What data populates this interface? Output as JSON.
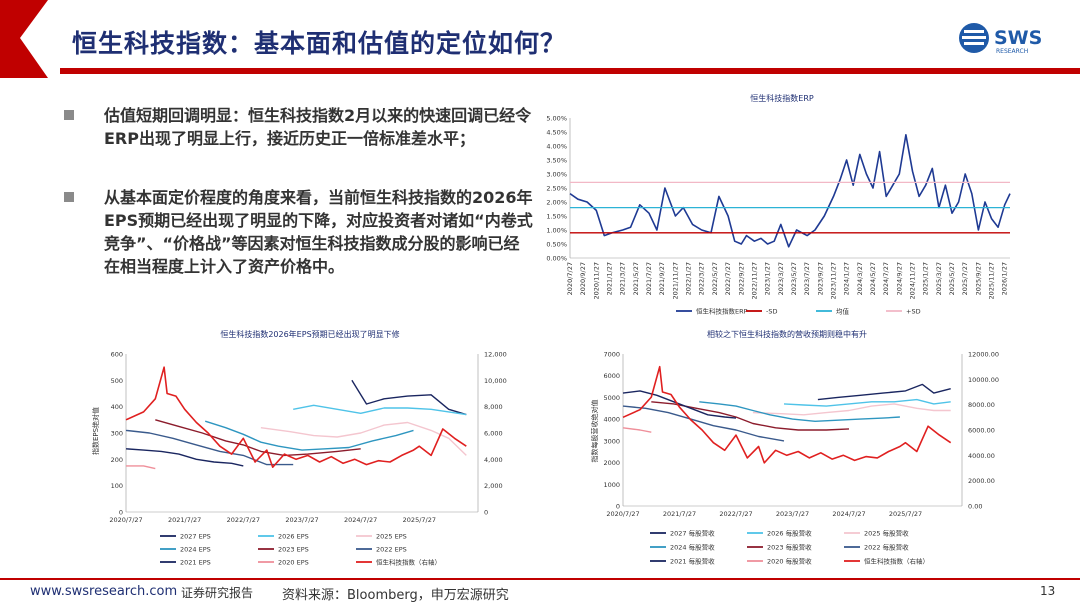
{
  "header": {
    "title": "恒生科技指数：基本面和估值的定位如何？"
  },
  "logo": {
    "text": "SWS",
    "subtext": "RESEARCH"
  },
  "bullets": [
    {
      "text": "估值短期回调明显：恒生科技指数2月以来的快速回调已经令ERP出现了明显上行，接近历史正一倍标准差水平；"
    },
    {
      "text": "从基本面定价程度的角度来看，当前恒生科技指数的2026年EPS预期已经出现了明显的下降，对应投资者对诸如“内卷式竞争”、“价格战”等因素对恒生科技指数成分股的影响已经在相当程度上计入了资产价格中。"
    }
  ],
  "footer": {
    "website": "www.swsresearch.com",
    "label": "证券研究报告",
    "source": "资料来源：Bloomberg，申万宏源研究",
    "page": "13"
  },
  "colors": {
    "navy": "#1f2f73",
    "red": "#c00000"
  },
  "chart_data": [
    {
      "type": "line",
      "title": "恒生科技指数ERP",
      "y_ticks": [
        "5.00%",
        "4.50%",
        "4.00%",
        "3.50%",
        "3.00%",
        "2.50%",
        "2.00%",
        "1.50%",
        "1.00%",
        "0.50%",
        "0.00%"
      ],
      "ylim": [
        0,
        5
      ],
      "x_ticks": [
        "2020/7/27",
        "2020/9/27",
        "2020/11/27",
        "2021/1/27",
        "2021/3/27",
        "2021/5/27",
        "2021/7/27",
        "2021/9/27",
        "2021/11/27",
        "2022/1/27",
        "2022/3/27",
        "2022/5/27",
        "2022/7/27",
        "2022/9/27",
        "2022/11/27",
        "2023/1/27",
        "2023/3/27",
        "2023/5/27",
        "2023/7/27",
        "2023/9/27",
        "2023/11/27",
        "2024/1/27",
        "2024/3/27",
        "2024/5/27",
        "2024/7/27",
        "2024/9/27",
        "2024/11/27",
        "2025/1/27",
        "2025/3/27",
        "2025/5/27",
        "2025/7/27",
        "2025/9/27",
        "2025/11/27",
        "2026/1/27"
      ],
      "legend": [
        "恒生科技指数ERP",
        "-SD",
        "均值",
        "+SD"
      ],
      "series": [
        {
          "name": "恒生科技指数ERP",
          "color": "#1f3a93",
          "x": [
            0,
            0.6,
            1.3,
            2,
            2.6,
            3.2,
            4,
            4.6,
            5.3,
            6,
            6.6,
            7.2,
            8,
            8.6,
            9.3,
            10,
            10.7,
            11.3,
            12,
            12.5,
            13,
            13.4,
            14,
            14.5,
            15,
            15.5,
            16,
            16.6,
            17.2,
            18,
            18.6,
            19.3,
            20,
            20.5,
            21,
            21.5,
            22,
            22.5,
            23,
            23.5,
            24,
            24.5,
            25,
            25.5,
            26,
            26.5,
            27,
            27.5,
            28,
            28.5,
            29,
            29.5,
            30,
            30.5,
            31,
            31.5,
            32,
            32.5,
            33,
            33.4
          ],
          "values": [
            2.3,
            2.1,
            2.0,
            1.7,
            0.8,
            0.9,
            1.0,
            1.1,
            1.9,
            1.6,
            1.0,
            2.5,
            1.5,
            1.8,
            1.2,
            1.0,
            0.9,
            2.2,
            1.5,
            0.6,
            0.5,
            0.8,
            0.6,
            0.7,
            0.5,
            0.6,
            1.2,
            0.4,
            1.0,
            0.8,
            1.0,
            1.5,
            2.2,
            2.8,
            3.5,
            2.6,
            3.7,
            3.0,
            2.5,
            3.8,
            2.2,
            2.6,
            3.0,
            4.4,
            3.1,
            2.2,
            2.6,
            3.2,
            1.8,
            2.6,
            1.6,
            2.0,
            3.0,
            2.3,
            1.0,
            2.0,
            1.4,
            1.1,
            1.9,
            2.3
          ]
        },
        {
          "name": "-SD",
          "color": "#c00000",
          "x": [
            0,
            33.4
          ],
          "values": [
            0.9,
            0.9
          ]
        },
        {
          "name": "均值",
          "color": "#2cb3d6",
          "x": [
            0,
            33.4
          ],
          "values": [
            1.8,
            1.8
          ]
        },
        {
          "name": "+SD",
          "color": "#f2b8c6",
          "x": [
            0,
            33.4
          ],
          "values": [
            2.7,
            2.7
          ]
        }
      ]
    },
    {
      "type": "line",
      "title": "恒生科技指数2026年EPS预期已经出现了明显下修",
      "ylabel": "指数EPS绝对值",
      "y_ticks": [
        "600",
        "500",
        "400",
        "300",
        "200",
        "100",
        "0"
      ],
      "y2_ticks": [
        "12,000",
        "10,000",
        "8,000",
        "6,000",
        "4,000",
        "2,000",
        "0"
      ],
      "ylim": [
        0,
        600
      ],
      "y2lim": [
        0,
        12000
      ],
      "x_ticks": [
        "2020/7/27",
        "2021/7/27",
        "2022/7/27",
        "2023/7/27",
        "2024/7/27",
        "2025/7/27"
      ],
      "legend": [
        "2027 EPS",
        "2026 EPS",
        "2025 EPS",
        "2024 EPS",
        "2023 EPS",
        "2022 EPS",
        "2021 EPS",
        "2020 EPS",
        "恒生科技指数（右轴）"
      ],
      "series": [
        {
          "name": "2027 EPS",
          "color": "#1a2660",
          "x": [
            3.85,
            4.1,
            4.4,
            4.8,
            5.2,
            5.5,
            5.8
          ],
          "values": [
            500,
            410,
            430,
            440,
            445,
            390,
            370
          ]
        },
        {
          "name": "2026 EPS",
          "color": "#4fc3e8",
          "x": [
            2.85,
            3.2,
            3.6,
            4.0,
            4.4,
            4.8,
            5.2,
            5.5,
            5.8
          ],
          "values": [
            390,
            405,
            390,
            375,
            395,
            395,
            390,
            380,
            370
          ]
        },
        {
          "name": "2025 EPS",
          "color": "#f4c6cf",
          "x": [
            2.3,
            2.8,
            3.2,
            3.6,
            4.0,
            4.4,
            4.8,
            5.2,
            5.5,
            5.8
          ],
          "values": [
            320,
            305,
            290,
            285,
            300,
            330,
            340,
            310,
            280,
            215
          ]
        },
        {
          "name": "2024 EPS",
          "color": "#2e96c0",
          "x": [
            1.35,
            1.7,
            2.0,
            2.3,
            2.6,
            3.0,
            3.4,
            3.8,
            4.2,
            4.6,
            4.9
          ],
          "values": [
            345,
            320,
            295,
            265,
            250,
            235,
            240,
            245,
            270,
            290,
            310
          ]
        },
        {
          "name": "2023 EPS",
          "color": "#8c1c2c",
          "x": [
            0.5,
            0.9,
            1.3,
            1.7,
            2.0,
            2.3,
            2.7,
            3.1,
            3.6,
            4.0
          ],
          "values": [
            350,
            325,
            300,
            270,
            255,
            230,
            215,
            220,
            230,
            240
          ]
        },
        {
          "name": "2022 EPS",
          "color": "#3a5a8c",
          "x": [
            0,
            0.4,
            0.8,
            1.2,
            1.6,
            2.0,
            2.4,
            2.85
          ],
          "values": [
            310,
            300,
            280,
            255,
            230,
            215,
            180,
            180
          ]
        },
        {
          "name": "2021 EPS",
          "color": "#1a2660",
          "x": [
            0,
            0.3,
            0.6,
            0.9,
            1.2,
            1.5,
            1.8,
            2.0
          ],
          "values": [
            240,
            235,
            230,
            220,
            200,
            190,
            185,
            175
          ]
        },
        {
          "name": "2020 EPS",
          "color": "#ef8f9a",
          "x": [
            0,
            0.3,
            0.5
          ],
          "values": [
            175,
            175,
            165
          ]
        },
        {
          "name": "恒生科技指数（右轴）",
          "color": "#e02020",
          "axis": "right",
          "x": [
            0,
            0.3,
            0.5,
            0.65,
            0.7,
            0.85,
            1.0,
            1.2,
            1.4,
            1.6,
            1.8,
            2.0,
            2.2,
            2.4,
            2.5,
            2.7,
            2.9,
            3.1,
            3.3,
            3.5,
            3.7,
            3.9,
            4.1,
            4.3,
            4.5,
            4.7,
            4.9,
            5.0,
            5.2,
            5.4,
            5.6,
            5.8
          ],
          "values": [
            7000,
            7600,
            8600,
            11000,
            9000,
            8800,
            7800,
            6800,
            6000,
            5000,
            4400,
            5600,
            3800,
            4700,
            3400,
            4400,
            4000,
            4300,
            3800,
            4200,
            3700,
            4000,
            3600,
            3900,
            3800,
            4300,
            4700,
            5000,
            4300,
            6300,
            5600,
            5000
          ]
        }
      ]
    },
    {
      "type": "line",
      "title": "相较之下恒生科技指数的营收预期则稳中有升",
      "ylabel": "指数每股营收绝对值",
      "y_ticks": [
        "7000",
        "6000",
        "5000",
        "4000",
        "3000",
        "2000",
        "1000",
        "0"
      ],
      "y2_ticks": [
        "12000.00",
        "10000.00",
        "8000.00",
        "6000.00",
        "4000.00",
        "2000.00",
        "0.00"
      ],
      "ylim": [
        0,
        7000
      ],
      "y2lim": [
        0,
        12000
      ],
      "x_ticks": [
        "2020/7/27",
        "2021/7/27",
        "2022/7/27",
        "2023/7/27",
        "2024/7/27",
        "2025/7/27"
      ],
      "legend": [
        "2027 每股营收",
        "2026 每股营收",
        "2025 每股营收",
        "2024 每股营收",
        "2023 每股营收",
        "2022 每股营收",
        "2021 每股营收",
        "2020 每股营收",
        "恒生科技指数（右轴）"
      ],
      "series": [
        {
          "name": "2027 每股营收",
          "color": "#1a2660",
          "x": [
            3.45,
            3.8,
            4.2,
            4.6,
            5.0,
            5.3,
            5.5,
            5.8
          ],
          "values": [
            4900,
            5000,
            5100,
            5200,
            5300,
            5600,
            5200,
            5400
          ]
        },
        {
          "name": "2026 每股营收",
          "color": "#4fc3e8",
          "x": [
            2.85,
            3.2,
            3.6,
            4.0,
            4.4,
            4.8,
            5.2,
            5.5,
            5.8
          ],
          "values": [
            4700,
            4650,
            4600,
            4700,
            4800,
            4800,
            4900,
            4700,
            4800
          ]
        },
        {
          "name": "2025 每股营收",
          "color": "#f4c6cf",
          "x": [
            2.3,
            2.8,
            3.2,
            3.6,
            4.0,
            4.4,
            4.8,
            5.2,
            5.5,
            5.8
          ],
          "values": [
            4300,
            4250,
            4200,
            4300,
            4400,
            4600,
            4700,
            4500,
            4400,
            4400
          ]
        },
        {
          "name": "2024 每股营收",
          "color": "#2e96c0",
          "x": [
            1.35,
            1.7,
            2.0,
            2.3,
            2.6,
            3.0,
            3.4,
            3.8,
            4.2,
            4.6,
            4.9
          ],
          "values": [
            4800,
            4700,
            4600,
            4400,
            4200,
            4000,
            3900,
            3950,
            4000,
            4050,
            4100
          ]
        },
        {
          "name": "2023 每股营收",
          "color": "#8c1c2c",
          "x": [
            0.5,
            0.9,
            1.3,
            1.7,
            2.0,
            2.3,
            2.7,
            3.1,
            3.6,
            4.0
          ],
          "values": [
            4800,
            4700,
            4500,
            4300,
            4100,
            3800,
            3600,
            3500,
            3500,
            3550
          ]
        },
        {
          "name": "2022 每股营收",
          "color": "#3a5a8c",
          "x": [
            0,
            0.4,
            0.8,
            1.2,
            1.6,
            2.0,
            2.4,
            2.85
          ],
          "values": [
            4600,
            4500,
            4300,
            4000,
            3700,
            3500,
            3200,
            3000
          ]
        },
        {
          "name": "2021 每股营收",
          "color": "#1a2660",
          "x": [
            0,
            0.3,
            0.6,
            0.9,
            1.2,
            1.5,
            1.8,
            2.0
          ],
          "values": [
            5200,
            5300,
            5100,
            4800,
            4500,
            4200,
            4100,
            4050
          ]
        },
        {
          "name": "2020 每股营收",
          "color": "#ef8f9a",
          "x": [
            0,
            0.3,
            0.5
          ],
          "values": [
            3600,
            3500,
            3400
          ]
        },
        {
          "name": "恒生科技指数（右轴）",
          "color": "#e02020",
          "axis": "right",
          "x": [
            0,
            0.3,
            0.5,
            0.65,
            0.7,
            0.85,
            1.0,
            1.2,
            1.4,
            1.6,
            1.8,
            2.0,
            2.2,
            2.4,
            2.5,
            2.7,
            2.9,
            3.1,
            3.3,
            3.5,
            3.7,
            3.9,
            4.1,
            4.3,
            4.5,
            4.7,
            4.9,
            5.0,
            5.2,
            5.4,
            5.6,
            5.8
          ],
          "values": [
            7000,
            7600,
            8600,
            11000,
            9000,
            8800,
            7800,
            6800,
            6000,
            5000,
            4400,
            5600,
            3800,
            4700,
            3400,
            4400,
            4000,
            4300,
            3800,
            4200,
            3700,
            4000,
            3600,
            3900,
            3800,
            4300,
            4700,
            5000,
            4300,
            6300,
            5600,
            5000
          ]
        }
      ]
    }
  ]
}
